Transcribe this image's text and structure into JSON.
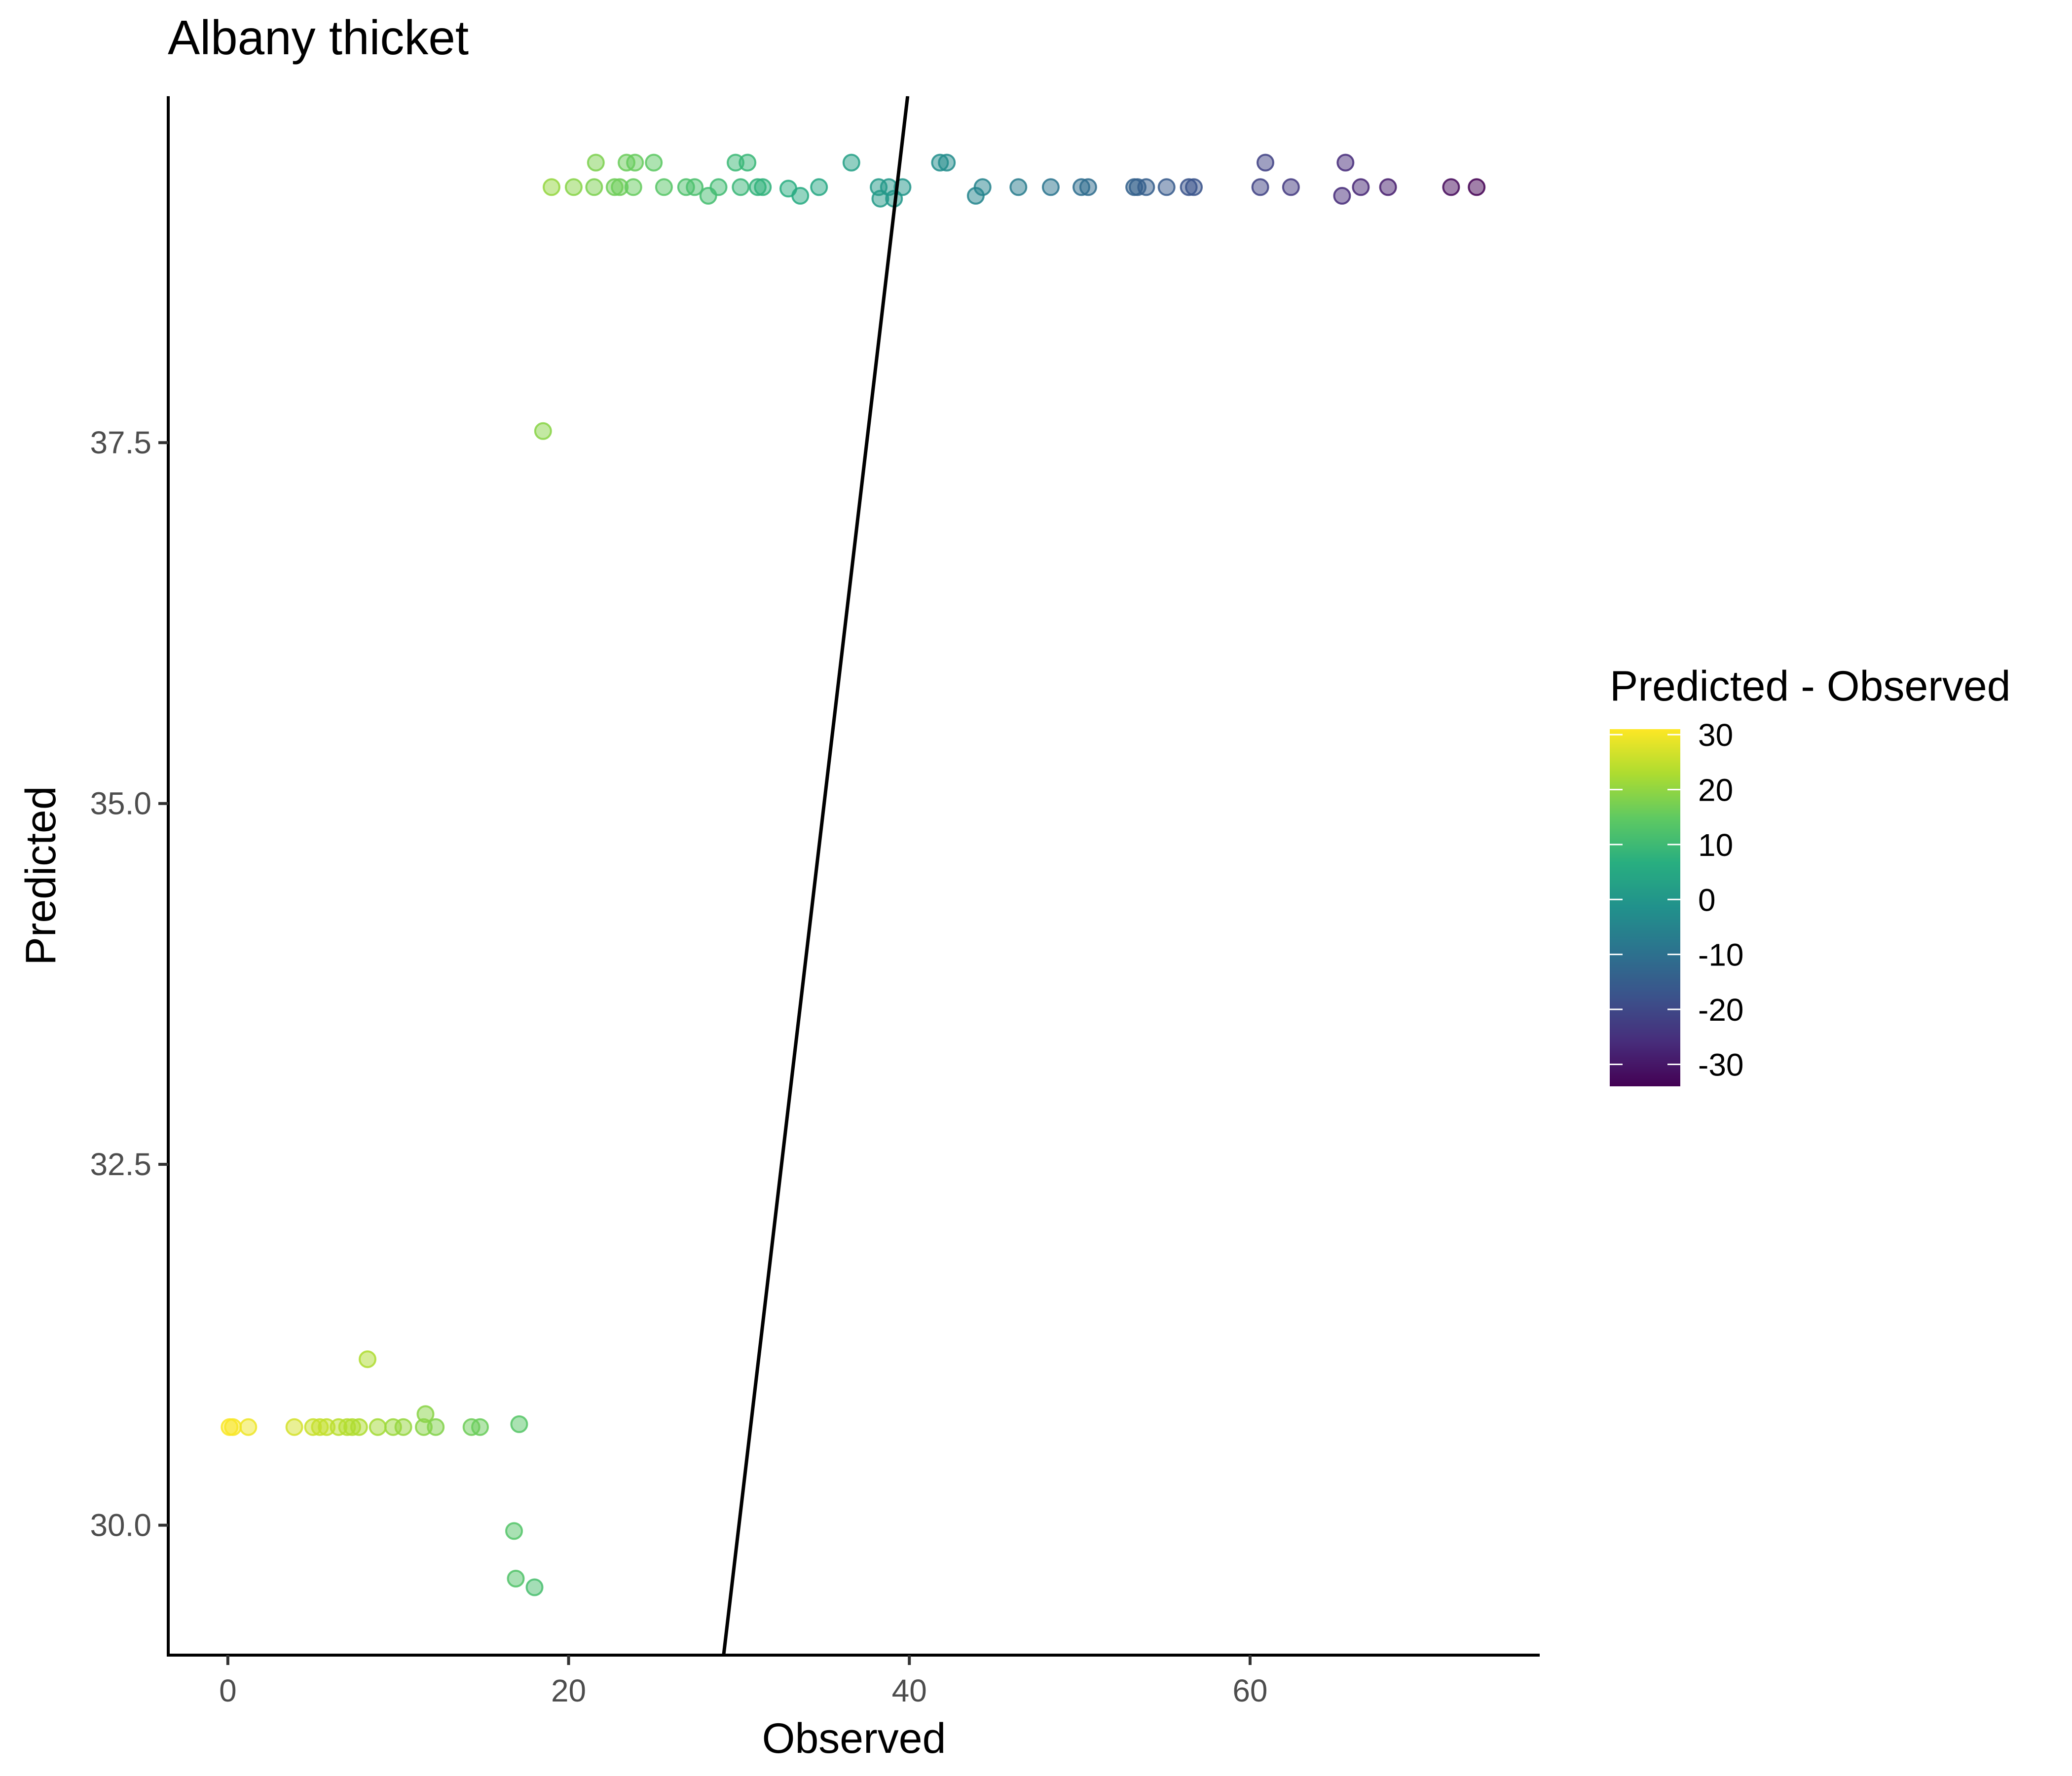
{
  "chart_data": {
    "type": "scatter",
    "title": "Albany thicket",
    "xlabel": "Observed",
    "ylabel": "Predicted",
    "xlim": [
      -3.5,
      77
    ],
    "ylim": [
      29.1,
      39.9
    ],
    "x_ticks": [
      0,
      20,
      40,
      60
    ],
    "y_ticks": [
      30.0,
      32.5,
      35.0,
      37.5
    ],
    "y_tick_labels": [
      "30.0",
      "32.5",
      "35.0",
      "37.5"
    ],
    "grid": false,
    "legend": {
      "title": "Predicted - Observed",
      "position": "right",
      "type": "colorbar",
      "palette": "viridis",
      "range": [
        -34,
        31
      ],
      "ticks": [
        30,
        20,
        10,
        0,
        -10,
        -20,
        -30
      ],
      "tick_labels": [
        "30",
        "20",
        "10",
        "0",
        "-10",
        "-20",
        "-30"
      ],
      "colors": [
        "#440154",
        "#472d7b",
        "#3b528b",
        "#2c728e",
        "#21918c",
        "#28ae80",
        "#5ec962",
        "#addc30",
        "#fde725"
      ]
    },
    "reference_line": {
      "type": "identity",
      "color": "#000000"
    },
    "point_alpha": 0.5,
    "points": [
      {
        "x": 0.1,
        "y": 30.68
      },
      {
        "x": 0.3,
        "y": 30.68
      },
      {
        "x": 1.2,
        "y": 30.68
      },
      {
        "x": 3.9,
        "y": 30.68
      },
      {
        "x": 5.0,
        "y": 30.68
      },
      {
        "x": 5.4,
        "y": 30.68
      },
      {
        "x": 5.8,
        "y": 30.68
      },
      {
        "x": 6.5,
        "y": 30.68
      },
      {
        "x": 7.0,
        "y": 30.68
      },
      {
        "x": 7.3,
        "y": 30.68
      },
      {
        "x": 7.7,
        "y": 30.68
      },
      {
        "x": 8.2,
        "y": 31.15
      },
      {
        "x": 8.8,
        "y": 30.68
      },
      {
        "x": 9.7,
        "y": 30.68
      },
      {
        "x": 10.3,
        "y": 30.68
      },
      {
        "x": 11.5,
        "y": 30.68
      },
      {
        "x": 11.6,
        "y": 30.77
      },
      {
        "x": 12.2,
        "y": 30.68
      },
      {
        "x": 14.3,
        "y": 30.68
      },
      {
        "x": 14.8,
        "y": 30.68
      },
      {
        "x": 16.8,
        "y": 29.96
      },
      {
        "x": 16.9,
        "y": 29.63
      },
      {
        "x": 17.1,
        "y": 30.7
      },
      {
        "x": 18.0,
        "y": 29.57
      },
      {
        "x": 18.5,
        "y": 37.58
      },
      {
        "x": 19.0,
        "y": 39.27
      },
      {
        "x": 20.3,
        "y": 39.27
      },
      {
        "x": 21.5,
        "y": 39.27
      },
      {
        "x": 21.6,
        "y": 39.44
      },
      {
        "x": 22.7,
        "y": 39.27
      },
      {
        "x": 23.0,
        "y": 39.27
      },
      {
        "x": 23.4,
        "y": 39.44
      },
      {
        "x": 23.8,
        "y": 39.27
      },
      {
        "x": 23.9,
        "y": 39.44
      },
      {
        "x": 25.0,
        "y": 39.44
      },
      {
        "x": 25.6,
        "y": 39.27
      },
      {
        "x": 26.9,
        "y": 39.27
      },
      {
        "x": 27.4,
        "y": 39.27
      },
      {
        "x": 28.2,
        "y": 39.21
      },
      {
        "x": 28.8,
        "y": 39.27
      },
      {
        "x": 29.8,
        "y": 39.44
      },
      {
        "x": 30.1,
        "y": 39.27
      },
      {
        "x": 30.5,
        "y": 39.44
      },
      {
        "x": 31.1,
        "y": 39.27
      },
      {
        "x": 31.4,
        "y": 39.27
      },
      {
        "x": 32.9,
        "y": 39.26
      },
      {
        "x": 33.6,
        "y": 39.21
      },
      {
        "x": 34.7,
        "y": 39.27
      },
      {
        "x": 36.6,
        "y": 39.44
      },
      {
        "x": 38.2,
        "y": 39.27
      },
      {
        "x": 38.3,
        "y": 39.19
      },
      {
        "x": 38.8,
        "y": 39.27
      },
      {
        "x": 39.1,
        "y": 39.19
      },
      {
        "x": 39.6,
        "y": 39.27
      },
      {
        "x": 41.8,
        "y": 39.44
      },
      {
        "x": 42.2,
        "y": 39.44
      },
      {
        "x": 43.9,
        "y": 39.21
      },
      {
        "x": 44.3,
        "y": 39.27
      },
      {
        "x": 46.4,
        "y": 39.27
      },
      {
        "x": 48.3,
        "y": 39.27
      },
      {
        "x": 50.1,
        "y": 39.27
      },
      {
        "x": 50.5,
        "y": 39.27
      },
      {
        "x": 53.2,
        "y": 39.27
      },
      {
        "x": 53.4,
        "y": 39.27
      },
      {
        "x": 53.9,
        "y": 39.27
      },
      {
        "x": 55.1,
        "y": 39.27
      },
      {
        "x": 56.4,
        "y": 39.27
      },
      {
        "x": 56.7,
        "y": 39.27
      },
      {
        "x": 60.6,
        "y": 39.27
      },
      {
        "x": 60.9,
        "y": 39.44
      },
      {
        "x": 62.4,
        "y": 39.27
      },
      {
        "x": 65.4,
        "y": 39.21
      },
      {
        "x": 65.6,
        "y": 39.44
      },
      {
        "x": 66.5,
        "y": 39.27
      },
      {
        "x": 68.1,
        "y": 39.27
      },
      {
        "x": 71.8,
        "y": 39.27
      },
      {
        "x": 73.3,
        "y": 39.27
      }
    ]
  }
}
